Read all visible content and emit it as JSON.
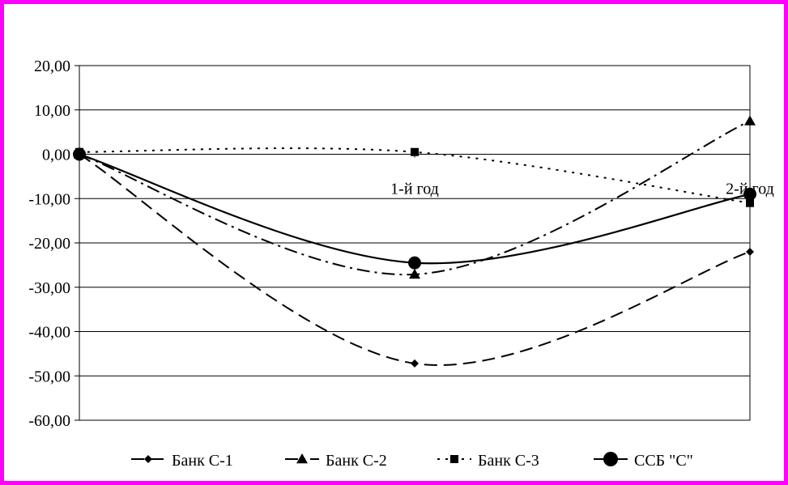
{
  "frame": {
    "border_color": "#ff00ff"
  },
  "chart_data": {
    "type": "line",
    "categories": [
      "",
      "1-й год",
      "2-й год"
    ],
    "y_ticks": [
      "20,00",
      "10,00",
      "0,00",
      "-10,00",
      "-20,00",
      "-30,00",
      "-40,00",
      "-50,00",
      "-60,00"
    ],
    "ylim": [
      -60,
      20
    ],
    "grid": true,
    "legend_position": "bottom",
    "series": [
      {
        "name": "Банк С-1",
        "values": [
          0,
          -47.2,
          -22
        ],
        "marker": "diamond",
        "dash": "dashed"
      },
      {
        "name": "Банк С-2",
        "values": [
          0,
          -27.1,
          7.5
        ],
        "marker": "triangle",
        "dash": "dash-dot"
      },
      {
        "name": "Банк С-3",
        "values": [
          0.5,
          0.5,
          -11
        ],
        "marker": "square",
        "dash": "dotted"
      },
      {
        "name": "ССБ \"С\"",
        "values": [
          0,
          -24.5,
          -9
        ],
        "marker": "circle",
        "dash": "solid"
      }
    ]
  }
}
